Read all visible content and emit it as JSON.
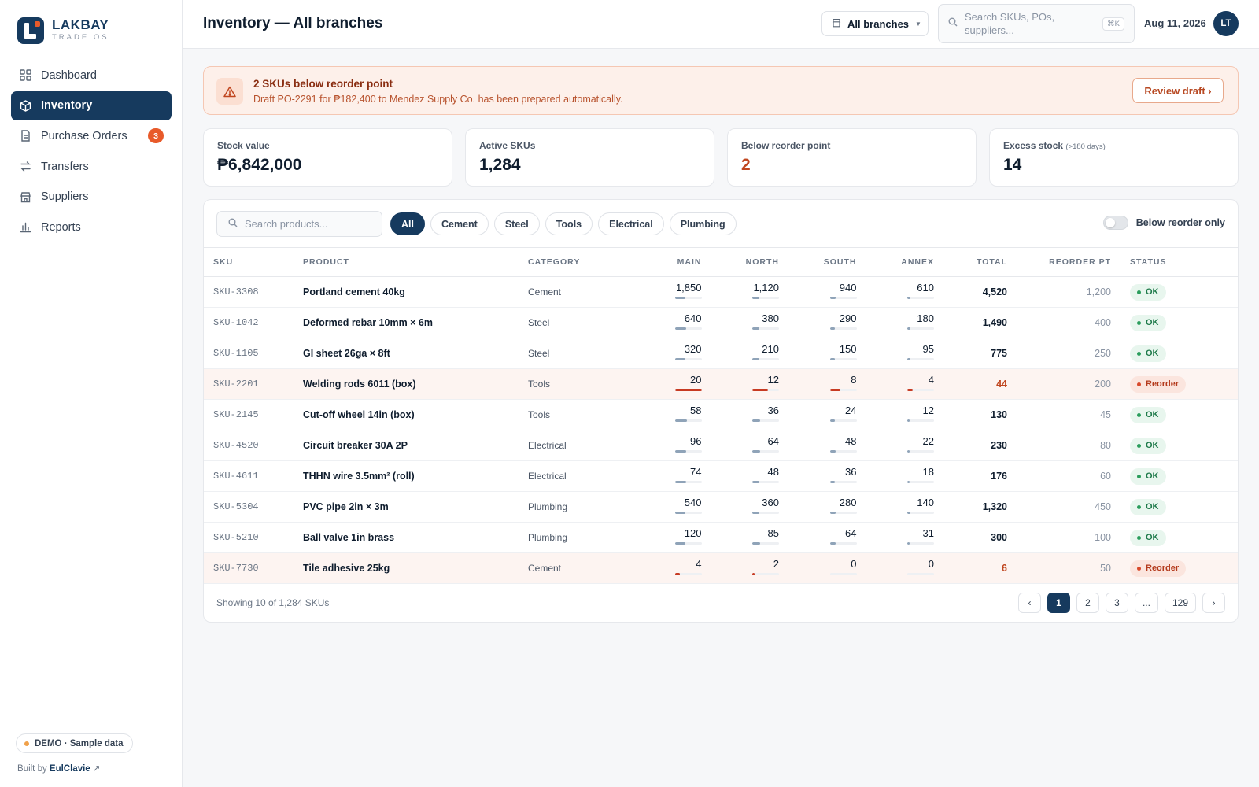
{
  "brand": {
    "name": "LAKBAY",
    "sub": "TRADE OS"
  },
  "sidebar": {
    "items": [
      {
        "label": "Dashboard",
        "icon": "grid-icon"
      },
      {
        "label": "Inventory",
        "icon": "box-icon",
        "active": true
      },
      {
        "label": "Purchase Orders",
        "icon": "document-icon",
        "badge": "3"
      },
      {
        "label": "Transfers",
        "icon": "transfer-arrows-icon"
      },
      {
        "label": "Suppliers",
        "icon": "store-icon"
      },
      {
        "label": "Reports",
        "icon": "bar-chart-icon"
      }
    ],
    "demo_label": "DEMO · Sample data",
    "built_by_prefix": "Built by",
    "built_by_name": "EulClavie"
  },
  "header": {
    "title": "Inventory — All branches",
    "branch_select": "All branches",
    "search_placeholder": "Search SKUs, POs, suppliers...",
    "search_shortcut": "⌘K",
    "date": "Aug 11, 2026",
    "avatar_initials": "LT"
  },
  "alert": {
    "title": "2 SKUs below reorder point",
    "description": "Draft PO-2291 for ₱182,400 to Mendez Supply Co. has been prepared automatically.",
    "action": "Review draft ›"
  },
  "stats": {
    "stock_value": {
      "label": "Stock value",
      "value": "₱6,842,000"
    },
    "active_skus": {
      "label": "Active SKUs",
      "value": "1,284"
    },
    "below_reorder": {
      "label": "Below reorder point",
      "value": "2"
    },
    "excess_stock": {
      "label": "Excess stock",
      "note": "(>180 days)",
      "value": "14"
    }
  },
  "filters": {
    "search_placeholder": "Search products...",
    "chips": [
      "All",
      "Cement",
      "Steel",
      "Tools",
      "Electrical",
      "Plumbing"
    ],
    "active_chip": "All",
    "toggle_label": "Below reorder only",
    "toggle_on": false
  },
  "table": {
    "headers": [
      "SKU",
      "PRODUCT",
      "CATEGORY",
      "MAIN",
      "NORTH",
      "SOUTH",
      "ANNEX",
      "TOTAL",
      "REORDER PT",
      "STATUS"
    ],
    "rows": [
      {
        "sku": "SKU-3308",
        "product": "Portland cement 40kg",
        "category": "Cement",
        "main": "1,850",
        "north": "1,120",
        "south": "940",
        "annex": "610",
        "total": "4,520",
        "reorder": "1,200",
        "status": "OK"
      },
      {
        "sku": "SKU-1042",
        "product": "Deformed rebar 10mm × 6m",
        "category": "Steel",
        "main": "640",
        "north": "380",
        "south": "290",
        "annex": "180",
        "total": "1,490",
        "reorder": "400",
        "status": "OK"
      },
      {
        "sku": "SKU-1105",
        "product": "GI sheet 26ga × 8ft",
        "category": "Steel",
        "main": "320",
        "north": "210",
        "south": "150",
        "annex": "95",
        "total": "775",
        "reorder": "250",
        "status": "OK"
      },
      {
        "sku": "SKU-2201",
        "product": "Welding rods 6011 (box)",
        "category": "Tools",
        "main": "20",
        "north": "12",
        "south": "8",
        "annex": "4",
        "total": "44",
        "reorder": "200",
        "status": "Reorder"
      },
      {
        "sku": "SKU-2145",
        "product": "Cut-off wheel 14in (box)",
        "category": "Tools",
        "main": "58",
        "north": "36",
        "south": "24",
        "annex": "12",
        "total": "130",
        "reorder": "45",
        "status": "OK"
      },
      {
        "sku": "SKU-4520",
        "product": "Circuit breaker 30A 2P",
        "category": "Electrical",
        "main": "96",
        "north": "64",
        "south": "48",
        "annex": "22",
        "total": "230",
        "reorder": "80",
        "status": "OK"
      },
      {
        "sku": "SKU-4611",
        "product": "THHN wire 3.5mm² (roll)",
        "category": "Electrical",
        "main": "74",
        "north": "48",
        "south": "36",
        "annex": "18",
        "total": "176",
        "reorder": "60",
        "status": "OK"
      },
      {
        "sku": "SKU-5304",
        "product": "PVC pipe 2in × 3m",
        "category": "Plumbing",
        "main": "540",
        "north": "360",
        "south": "280",
        "annex": "140",
        "total": "1,320",
        "reorder": "450",
        "status": "OK"
      },
      {
        "sku": "SKU-5210",
        "product": "Ball valve 1in brass",
        "category": "Plumbing",
        "main": "120",
        "north": "85",
        "south": "64",
        "annex": "31",
        "total": "300",
        "reorder": "100",
        "status": "OK"
      },
      {
        "sku": "SKU-7730",
        "product": "Tile adhesive 25kg",
        "category": "Cement",
        "main": "4",
        "north": "2",
        "south": "0",
        "annex": "0",
        "total": "6",
        "reorder": "50",
        "status": "Reorder"
      }
    ]
  },
  "pagination": {
    "showing": "Showing 10 of 1,284 SKUs",
    "prev": "‹",
    "pages": [
      "1",
      "2",
      "3",
      "...",
      "129"
    ],
    "current": "1",
    "next": "›"
  },
  "colors": {
    "brand": "#163a5e",
    "accent": "#e85a2a",
    "ok": "#2a9d5c",
    "warn": "#c0461f"
  }
}
